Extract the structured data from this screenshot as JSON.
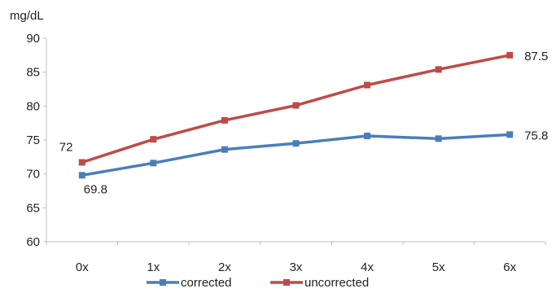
{
  "chart_data": {
    "type": "line",
    "ylabel": "mg/dL",
    "ylim": [
      60,
      90
    ],
    "yticks": [
      "60",
      "65",
      "70",
      "75",
      "80",
      "85",
      "90"
    ],
    "categories": [
      "0x",
      "1x",
      "2x",
      "3x",
      "4x",
      "5x",
      "6x"
    ],
    "series": [
      {
        "name": "corrected",
        "color": "#4a7ebb",
        "values": [
          69.8,
          71.6,
          73.6,
          74.5,
          75.6,
          75.2,
          75.8
        ],
        "labels": [
          "69.8",
          "",
          "",
          "",
          "",
          "",
          "75.8"
        ]
      },
      {
        "name": "uncorrected",
        "color": "#be4b48",
        "values": [
          71.7,
          75.1,
          77.9,
          80.1,
          83.1,
          85.4,
          87.5
        ],
        "labels": [
          "72",
          "",
          "",
          "",
          "",
          "",
          "87.5"
        ]
      }
    ],
    "grid": false,
    "legend_position": "bottom"
  }
}
